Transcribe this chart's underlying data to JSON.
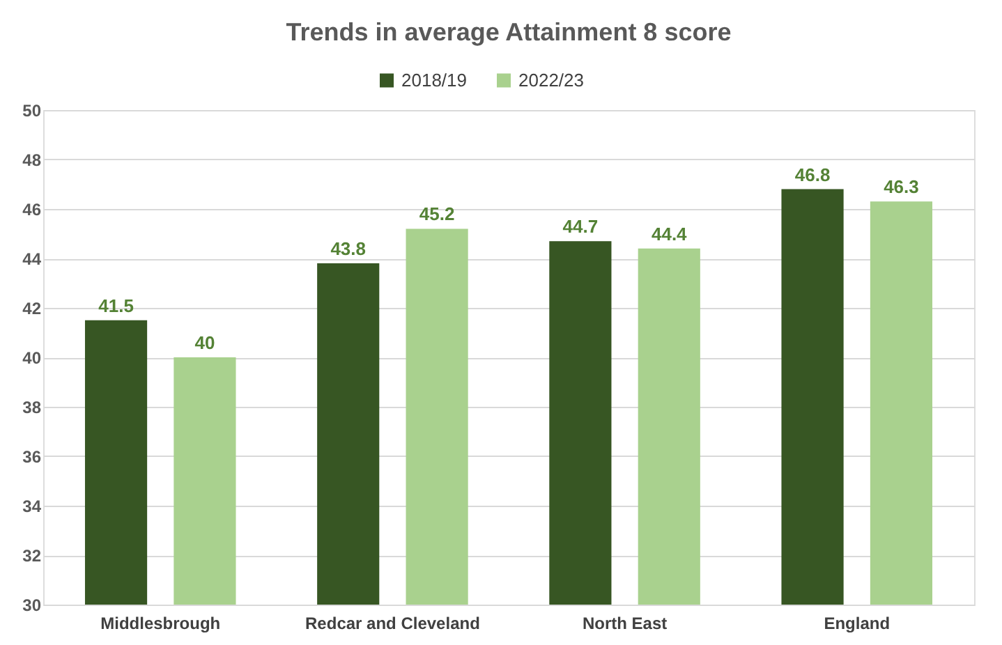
{
  "chart_data": {
    "type": "bar",
    "title": "Trends in average Attainment 8 score",
    "categories": [
      "Middlesbrough",
      "Redcar and Cleveland",
      "North East",
      "England"
    ],
    "series": [
      {
        "name": "2018/19",
        "color": "#375623",
        "values": [
          41.5,
          43.8,
          44.7,
          46.8
        ]
      },
      {
        "name": "2022/23",
        "color": "#a9d18e",
        "values": [
          40,
          45.2,
          44.4,
          46.3
        ]
      }
    ],
    "ylim": [
      30,
      50
    ],
    "yticks": [
      30,
      32,
      34,
      36,
      38,
      40,
      42,
      44,
      46,
      48,
      50
    ],
    "grid": "y",
    "legend": "top",
    "data_labels": true
  }
}
